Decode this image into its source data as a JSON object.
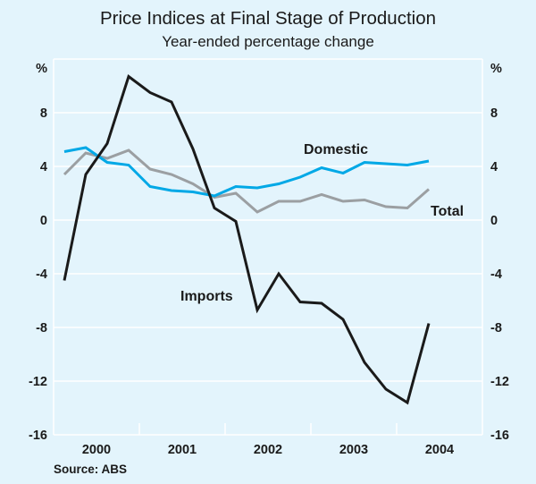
{
  "chart_data": {
    "type": "line",
    "title": "Price Indices at Final Stage of Production",
    "subtitle": "Year-ended percentage change",
    "xlabel": "",
    "ylabel": "%",
    "ylabel_right": "%",
    "ylim": [
      -16,
      12
    ],
    "yticks": [
      -16,
      -12,
      -8,
      -4,
      0,
      4,
      8
    ],
    "ytick_labels": [
      "-16",
      "-12",
      "-8",
      "-4",
      "0",
      "4",
      "8"
    ],
    "x_categories": [
      "2000",
      "2001",
      "2002",
      "2003",
      "2004"
    ],
    "x_periods": [
      "Mar 2000",
      "Jun 2000",
      "Sep 2000",
      "Dec 2000",
      "Mar 2001",
      "Jun 2001",
      "Sep 2001",
      "Dec 2001",
      "Mar 2002",
      "Jun 2002",
      "Sep 2002",
      "Dec 2002",
      "Mar 2003",
      "Jun 2003",
      "Sep 2003",
      "Dec 2003",
      "Mar 2004",
      "Jun 2004"
    ],
    "grid": true,
    "series": [
      {
        "name": "Imports",
        "label": "Imports",
        "color": "#1a1a1a",
        "values": [
          -4.5,
          3.4,
          5.7,
          10.7,
          9.5,
          8.8,
          5.3,
          0.9,
          -0.1,
          -6.7,
          -4.0,
          -6.1,
          -6.2,
          -7.4,
          -10.6,
          -12.6,
          -13.6,
          -7.7
        ]
      },
      {
        "name": "Domestic",
        "label": "Domestic",
        "color": "#00a8e6",
        "values": [
          5.1,
          5.4,
          4.3,
          4.1,
          2.5,
          2.2,
          2.1,
          1.8,
          2.5,
          2.4,
          2.7,
          3.2,
          3.9,
          3.5,
          4.3,
          4.2,
          4.1,
          4.4
        ]
      },
      {
        "name": "Total",
        "label": "Total",
        "color": "#9b9fa2",
        "values": [
          3.4,
          5.0,
          4.6,
          5.2,
          3.8,
          3.4,
          2.7,
          1.7,
          2.0,
          0.6,
          1.4,
          1.4,
          1.9,
          1.4,
          1.5,
          1.0,
          0.9,
          2.3
        ]
      }
    ],
    "source": "Source: ABS"
  },
  "colors": {
    "background": "#e3f4fc",
    "gridline": "#ffffff",
    "text": "#1a1a1a"
  }
}
